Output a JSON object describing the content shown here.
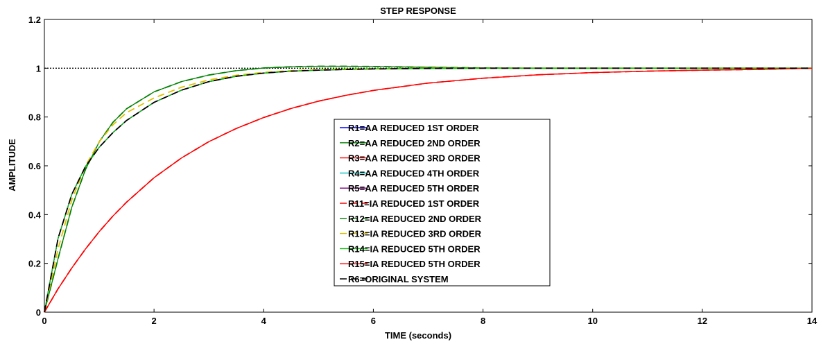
{
  "chart_data": {
    "type": "line",
    "title": "STEP RESPONSE",
    "xlabel": "TIME  (seconds)",
    "ylabel": "AMPLITUDE",
    "xlim": [
      0,
      14
    ],
    "ylim": [
      0,
      1.2
    ],
    "xticks": [
      0,
      2,
      4,
      6,
      8,
      10,
      12,
      14
    ],
    "yticks": [
      0,
      0.2,
      0.4,
      0.6,
      0.8,
      1,
      1.2
    ],
    "xtick_labels": [
      "0",
      "2",
      "4",
      "6",
      "8",
      "10",
      "12",
      "14"
    ],
    "ytick_labels": [
      "0",
      "0.2",
      "0.4",
      "0.6",
      "0.8",
      "1",
      "1.2"
    ],
    "grid": false,
    "legend_position": "center",
    "reference_line": {
      "y": 1,
      "style": "dotted",
      "color": "#000000"
    },
    "x": [
      0,
      0.25,
      0.5,
      0.75,
      1,
      1.25,
      1.5,
      2,
      2.5,
      3,
      3.5,
      4,
      4.5,
      5,
      5.5,
      6,
      7,
      8,
      9,
      10,
      11,
      12,
      13,
      14
    ],
    "series": [
      {
        "name": "R1=AA REDUCED 1ST ORDER",
        "color": "#0000ff",
        "dash": "solid",
        "values": [
          0,
          0.303,
          0.483,
          0.597,
          0.676,
          0.736,
          0.786,
          0.86,
          0.91,
          0.945,
          0.967,
          0.98,
          0.988,
          0.992,
          0.995,
          0.997,
          0.999,
          1.0,
          1.0,
          1.0,
          1.0,
          1.0,
          1.0,
          1.0
        ]
      },
      {
        "name": "R2=AA REDUCED 2ND ORDER",
        "color": "#008000",
        "dash": "solid",
        "values": [
          0,
          0.22,
          0.43,
          0.585,
          0.698,
          0.778,
          0.834,
          0.903,
          0.945,
          0.972,
          0.99,
          1.001,
          1.006,
          1.008,
          1.008,
          1.007,
          1.004,
          1.001,
          1.0,
          1.0,
          1.0,
          1.0,
          1.0,
          1.0
        ]
      },
      {
        "name": "R3=AA REDUCED 3RD ORDER",
        "color": "#ff0000",
        "dash": "solid",
        "values": [
          0,
          0.096,
          0.181,
          0.259,
          0.33,
          0.394,
          0.451,
          0.551,
          0.632,
          0.699,
          0.753,
          0.798,
          0.835,
          0.865,
          0.889,
          0.909,
          0.939,
          0.959,
          0.973,
          0.982,
          0.988,
          0.992,
          0.995,
          1.0
        ]
      },
      {
        "name": "R4=AA REDUCED 4TH ORDER",
        "color": "#00bfbf",
        "dash": "solid",
        "values": [
          0,
          0.303,
          0.483,
          0.597,
          0.676,
          0.736,
          0.786,
          0.86,
          0.91,
          0.945,
          0.967,
          0.98,
          0.988,
          0.992,
          0.995,
          0.997,
          0.999,
          1.0,
          1.0,
          1.0,
          1.0,
          1.0,
          1.0,
          1.0
        ]
      },
      {
        "name": "R5=AA REDUCED 5TH ORDER",
        "color": "#7f007f",
        "dash": "solid",
        "values": [
          0,
          0.303,
          0.483,
          0.597,
          0.676,
          0.736,
          0.786,
          0.86,
          0.91,
          0.945,
          0.967,
          0.98,
          0.988,
          0.992,
          0.995,
          0.997,
          0.999,
          1.0,
          1.0,
          1.0,
          1.0,
          1.0,
          1.0,
          1.0
        ]
      },
      {
        "name": "R11=IA REDUCED 1ST ORDER",
        "color": "#ff0000",
        "dash": "dashed",
        "values": [
          0,
          0.096,
          0.181,
          0.259,
          0.33,
          0.394,
          0.451,
          0.551,
          0.632,
          0.699,
          0.753,
          0.798,
          0.835,
          0.865,
          0.889,
          0.909,
          0.939,
          0.959,
          0.973,
          0.982,
          0.988,
          0.992,
          0.995,
          1.0
        ]
      },
      {
        "name": "R12=IA REDUCED 2ND ORDER",
        "color": "#008000",
        "dash": "dashed",
        "values": [
          0,
          0.22,
          0.43,
          0.585,
          0.698,
          0.778,
          0.834,
          0.903,
          0.945,
          0.972,
          0.99,
          1.001,
          1.006,
          1.008,
          1.008,
          1.007,
          1.004,
          1.001,
          1.0,
          1.0,
          1.0,
          1.0,
          1.0,
          1.0
        ]
      },
      {
        "name": "R13=IA REDUCED 3RD ORDER",
        "color": "#e0c000",
        "dash": "dashed",
        "values": [
          0,
          0.26,
          0.46,
          0.6,
          0.698,
          0.768,
          0.818,
          0.878,
          0.922,
          0.952,
          0.971,
          0.983,
          0.99,
          0.994,
          0.997,
          0.998,
          1.0,
          1.0,
          1.0,
          1.0,
          1.0,
          1.0,
          1.0,
          1.0
        ]
      },
      {
        "name": "R14=IA REDUCED 5TH ORDER",
        "color": "#00bf00",
        "dash": "solid",
        "values": [
          0,
          0.303,
          0.483,
          0.597,
          0.676,
          0.736,
          0.786,
          0.86,
          0.91,
          0.945,
          0.967,
          0.98,
          0.988,
          0.992,
          0.995,
          0.997,
          0.999,
          1.0,
          1.0,
          1.0,
          1.0,
          1.0,
          1.0,
          1.0
        ]
      },
      {
        "name": "R15=IA REDUCED 5TH ORDER",
        "color": "#ff0000",
        "dash": "solid",
        "values": [
          0,
          0.096,
          0.181,
          0.259,
          0.33,
          0.394,
          0.451,
          0.551,
          0.632,
          0.699,
          0.753,
          0.798,
          0.835,
          0.865,
          0.889,
          0.909,
          0.939,
          0.959,
          0.973,
          0.982,
          0.988,
          0.992,
          0.995,
          1.0
        ]
      },
      {
        "name": "R6=ORIGINAL SYSTEM",
        "color": "#000000",
        "dash": "dashed",
        "values": [
          0,
          0.303,
          0.483,
          0.597,
          0.676,
          0.736,
          0.786,
          0.86,
          0.91,
          0.945,
          0.967,
          0.98,
          0.988,
          0.992,
          0.995,
          0.997,
          0.999,
          1.0,
          1.0,
          1.0,
          1.0,
          1.0,
          1.0,
          1.0
        ]
      }
    ]
  }
}
